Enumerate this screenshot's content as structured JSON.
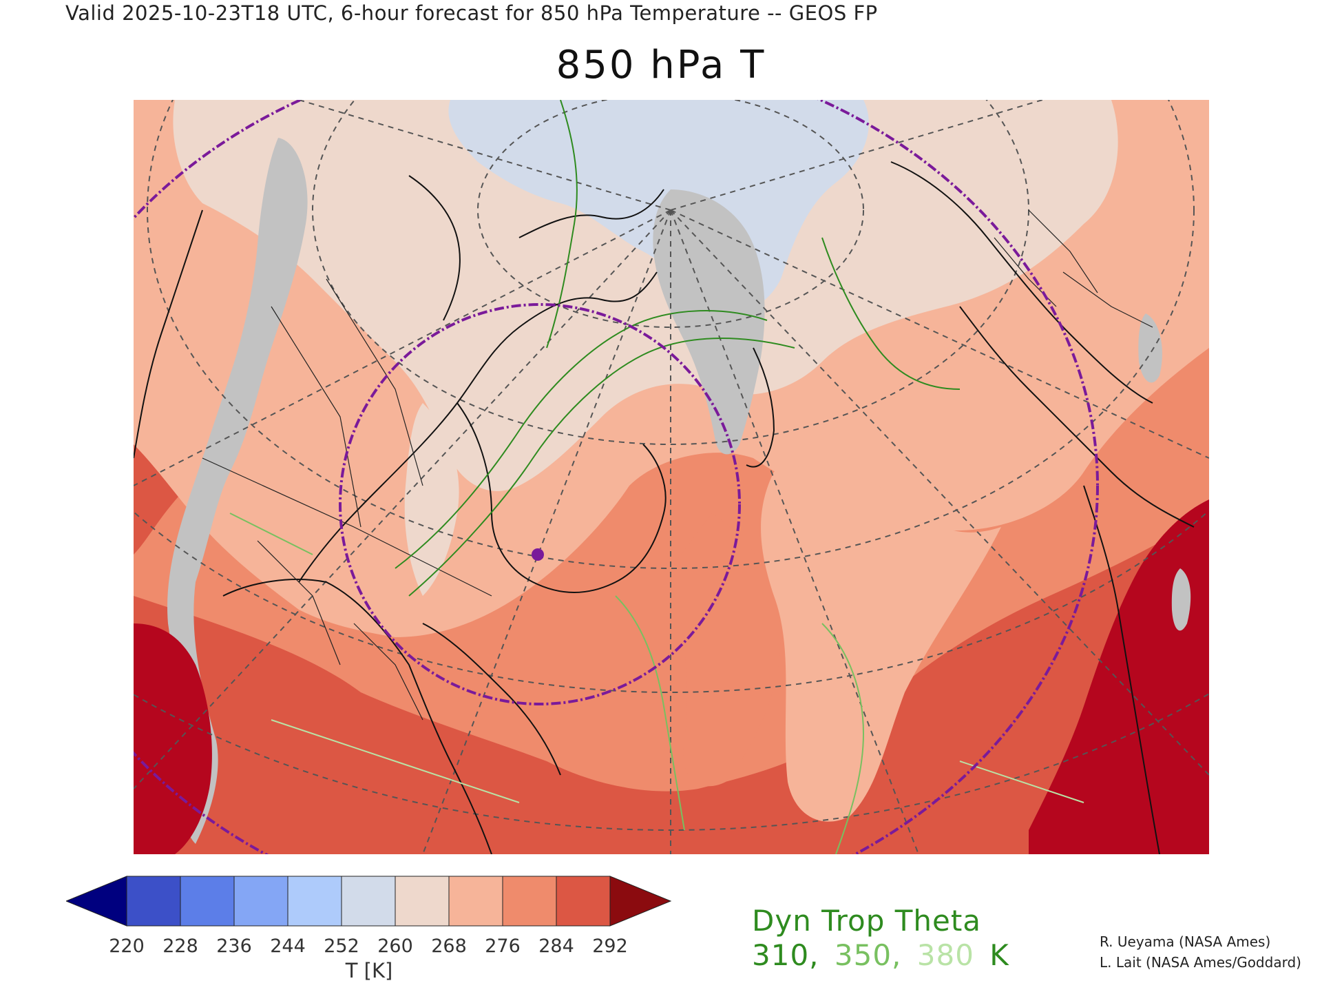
{
  "header": {
    "valid_line": "Valid 2025-10-23T18 UTC, 6-hour forecast for 850 hPa Temperature -- GEOS FP",
    "title": "850 hPa T"
  },
  "colorbar": {
    "ticks": [
      "220",
      "228",
      "236",
      "244",
      "252",
      "260",
      "268",
      "276",
      "284",
      "292"
    ],
    "label": "T [K]",
    "colors": [
      "#00007f",
      "#3c50c8",
      "#5c7ee8",
      "#84a6f5",
      "#aecbfb",
      "#d2dbea",
      "#eed8cc",
      "#f6b499",
      "#ef8b6c",
      "#dc5744",
      "#8b0b0f"
    ]
  },
  "legend": {
    "title": "Dyn Trop Theta",
    "values": [
      {
        "text": "310,",
        "color": "#2e8b1f"
      },
      {
        "text": "350,",
        "color": "#78c060"
      },
      {
        "text": "380",
        "color": "#b9e3a6"
      },
      {
        "text": "K",
        "color": "#2e8b1f"
      }
    ]
  },
  "credits": [
    "R. Ueyama (NASA Ames)",
    "L. Lait (NASA Ames/Goddard)"
  ],
  "map_colors": {
    "below_252": "#c2c2c2",
    "band_252_260": "#d2dbea",
    "band_260_268": "#eed8cc",
    "band_268_276": "#f6b499",
    "band_276_284": "#ef8b6c",
    "band_284_292": "#dc5744",
    "above_292": "#b5061e",
    "coastline": "#111111",
    "graticule": "#555555",
    "marker_ring": "#7a1a9a"
  }
}
